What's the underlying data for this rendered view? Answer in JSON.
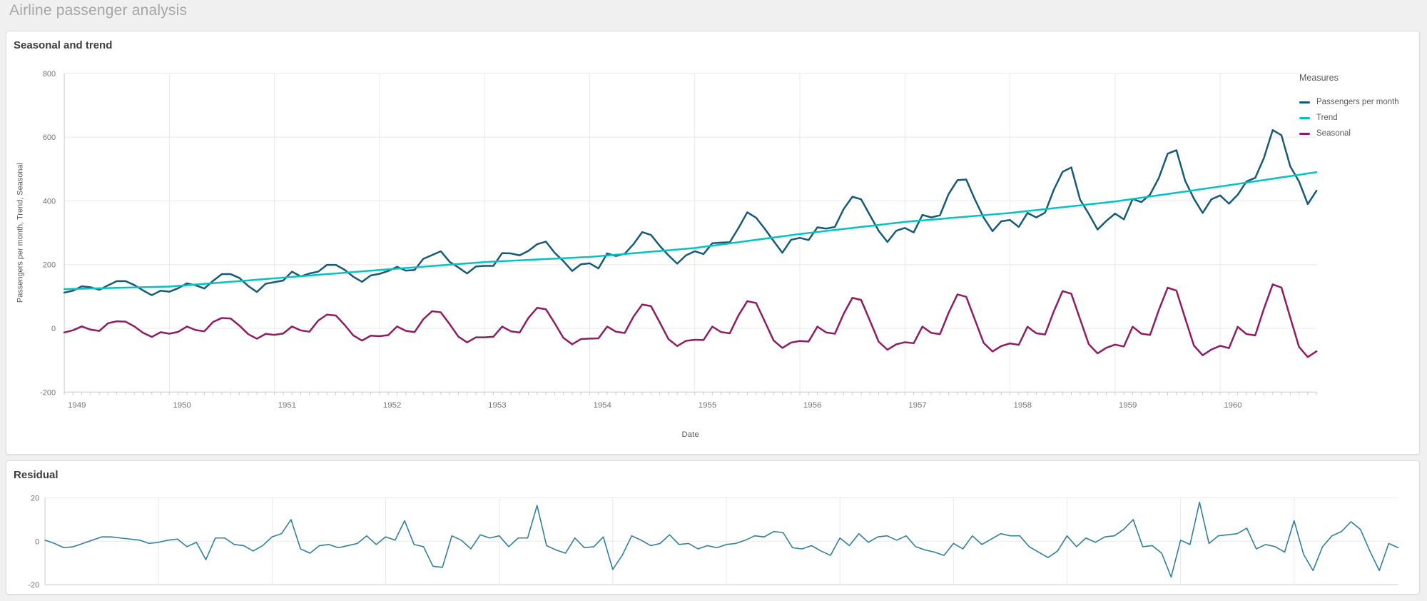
{
  "page": {
    "title": "Airline passenger analysis",
    "background": "#f0f0f0"
  },
  "panels": {
    "seasonal_trend": {
      "title": "Seasonal and trend",
      "legend_title": "Measures"
    },
    "residual": {
      "title": "Residual"
    }
  },
  "colors": {
    "passengers_line": "#175a78",
    "trend_line": "#00c4bf",
    "seasonal_line": "#8e1c62",
    "residual_line": "#2e7f9c",
    "gridline": "#e8e8e8",
    "axis_line": "#c9c9c9",
    "tick_text": "#737373",
    "axis_label_text": "#595959"
  },
  "chart_data": [
    {
      "type": "line",
      "title": "Seasonal and trend",
      "xlabel": "Date",
      "ylabel": "Passengers per month, Trend, Seasonal",
      "legend_title": "Measures",
      "legend_position": "right",
      "grid": true,
      "x_start": "1949-01",
      "x_end": "1960-12",
      "x_frequency": "monthly",
      "x_tick_labels": [
        "1949",
        "1950",
        "1951",
        "1952",
        "1953",
        "1954",
        "1955",
        "1956",
        "1957",
        "1958",
        "1959",
        "1960"
      ],
      "x_minor_ticks": "months",
      "ylim": [
        -200,
        800
      ],
      "y_ticks": [
        -200,
        0,
        200,
        400,
        600,
        800
      ],
      "series": [
        {
          "name": "Passengers per month",
          "color": "#175a78",
          "values": [
            112,
            118,
            132,
            129,
            121,
            135,
            148,
            148,
            136,
            119,
            104,
            118,
            115,
            126,
            141,
            135,
            125,
            149,
            170,
            170,
            158,
            133,
            114,
            140,
            145,
            150,
            178,
            163,
            172,
            178,
            199,
            199,
            184,
            162,
            146,
            166,
            171,
            180,
            193,
            181,
            183,
            218,
            230,
            242,
            209,
            191,
            172,
            194,
            196,
            196,
            236,
            235,
            229,
            243,
            264,
            272,
            237,
            211,
            180,
            201,
            204,
            188,
            235,
            227,
            234,
            264,
            302,
            293,
            259,
            229,
            203,
            229,
            242,
            233,
            267,
            269,
            270,
            315,
            364,
            347,
            312,
            274,
            237,
            278,
            284,
            277,
            317,
            313,
            318,
            374,
            413,
            405,
            355,
            306,
            271,
            306,
            315,
            301,
            356,
            348,
            355,
            422,
            465,
            467,
            404,
            347,
            305,
            336,
            340,
            318,
            362,
            348,
            363,
            435,
            491,
            505,
            404,
            359,
            310,
            337,
            360,
            342,
            406,
            396,
            420,
            472,
            548,
            559,
            463,
            407,
            362,
            405,
            417,
            391,
            419,
            461,
            472,
            535,
            622,
            606,
            508,
            461,
            390,
            432
          ]
        },
        {
          "name": "Trend",
          "color": "#00c4bf",
          "values": [
            123.0,
            123.7,
            124.3,
            125.0,
            125.7,
            126.3,
            127.0,
            127.7,
            128.3,
            129.0,
            129.7,
            130.3,
            131.0,
            133.2,
            135.3,
            137.5,
            139.7,
            141.8,
            144.0,
            146.2,
            148.3,
            150.5,
            152.7,
            154.8,
            157.0,
            159.2,
            161.3,
            163.5,
            165.7,
            167.8,
            170.0,
            172.2,
            174.3,
            176.5,
            178.7,
            180.8,
            183.0,
            185.1,
            187.2,
            189.3,
            191.3,
            193.4,
            195.5,
            197.6,
            199.7,
            201.8,
            203.8,
            205.9,
            208.0,
            209.3,
            210.7,
            212.0,
            213.3,
            214.7,
            216.0,
            217.3,
            218.7,
            220.0,
            221.3,
            222.7,
            224.0,
            226.3,
            228.7,
            231.0,
            233.3,
            235.7,
            238.0,
            240.3,
            242.7,
            245.0,
            247.3,
            249.7,
            252.0,
            255.7,
            259.3,
            263.0,
            266.7,
            270.3,
            274.0,
            277.7,
            281.3,
            285.0,
            288.7,
            292.3,
            296.0,
            299.2,
            302.3,
            305.5,
            308.7,
            311.8,
            315.0,
            318.2,
            321.3,
            324.5,
            327.7,
            330.8,
            334.0,
            336.3,
            338.7,
            341.0,
            343.3,
            345.7,
            348.0,
            350.3,
            352.7,
            355.0,
            357.3,
            359.7,
            362.0,
            365.0,
            368.0,
            371.0,
            374.0,
            377.0,
            380.0,
            383.0,
            386.0,
            389.0,
            392.0,
            395.0,
            398.0,
            401.9,
            405.8,
            409.8,
            413.7,
            417.6,
            421.5,
            425.4,
            429.3,
            433.3,
            437.2,
            441.1,
            445.0,
            449.1,
            453.2,
            457.3,
            461.4,
            465.5,
            469.5,
            473.6,
            477.7,
            481.8,
            485.9,
            490.0
          ]
        },
        {
          "name": "Seasonal",
          "color": "#8e1c62",
          "values": [
            -13.0,
            -6.0,
            6.0,
            -4.0,
            -8.0,
            16.0,
            22.0,
            21.0,
            6.0,
            -14.0,
            -27.0,
            -12.0,
            -16.8,
            -11.1,
            5.9,
            -5.3,
            -9.3,
            20.2,
            32.5,
            30.7,
            8.5,
            -18.0,
            -32.7,
            -17.5,
            -20.6,
            -16.2,
            5.8,
            -6.5,
            -10.5,
            24.4,
            43.1,
            40.5,
            11.1,
            -22.0,
            -38.5,
            -22.9,
            -24.5,
            -21.3,
            5.7,
            -7.8,
            -11.8,
            28.5,
            53.6,
            50.2,
            13.6,
            -26.0,
            -44.2,
            -28.4,
            -28.3,
            -26.4,
            5.6,
            -9.1,
            -13.1,
            32.7,
            64.2,
            59.9,
            16.2,
            -30.0,
            -49.9,
            -33.8,
            -32.1,
            -31.5,
            5.5,
            -10.4,
            -14.4,
            36.9,
            74.7,
            69.6,
            18.7,
            -34.0,
            -55.6,
            -39.3,
            -35.9,
            -36.5,
            5.5,
            -11.6,
            -15.6,
            41.1,
            85.3,
            79.4,
            21.3,
            -38.0,
            -61.4,
            -44.7,
            -39.7,
            -41.6,
            5.4,
            -12.9,
            -16.9,
            45.3,
            95.8,
            89.1,
            23.8,
            -42.0,
            -67.1,
            -50.2,
            -43.5,
            -46.7,
            5.3,
            -14.2,
            -18.2,
            49.5,
            106.4,
            98.8,
            26.4,
            -46.0,
            -72.8,
            -55.6,
            -47.4,
            -51.8,
            5.2,
            -15.5,
            -19.5,
            53.6,
            116.9,
            108.5,
            28.9,
            -50.0,
            -78.5,
            -61.1,
            -51.2,
            -56.9,
            5.1,
            -16.7,
            -20.7,
            57.8,
            127.5,
            118.3,
            31.5,
            -54.0,
            -84.3,
            -66.5,
            -55.0,
            -62.0,
            5.0,
            -18.0,
            -22.0,
            62.0,
            138.0,
            128.0,
            34.0,
            -58.0,
            -90.0,
            -72.0
          ]
        }
      ]
    },
    {
      "type": "line",
      "title": "Residual",
      "xlabel": "",
      "ylabel": "",
      "grid": true,
      "x_start": "1949-01",
      "x_end": "1960-12",
      "x_frequency": "monthly",
      "ylim": [
        -20,
        20
      ],
      "y_ticks": [
        -20,
        0,
        20
      ],
      "series": [
        {
          "name": "Residual",
          "color": "#2e7f9c",
          "values": [
            0.5,
            -1.0,
            -3.0,
            -2.5,
            -1.0,
            0.5,
            2.0,
            2.0,
            1.5,
            1.0,
            0.5,
            -1.0,
            -0.5,
            0.5,
            1.0,
            -2.5,
            -0.5,
            -8.5,
            1.5,
            1.5,
            -1.5,
            -2.0,
            -4.5,
            -2.0,
            2.0,
            3.5,
            10.0,
            -3.5,
            -5.5,
            -2.0,
            -1.5,
            -3.0,
            -2.0,
            -1.0,
            2.5,
            -1.5,
            2.0,
            0.5,
            9.5,
            -1.5,
            -2.5,
            -11.5,
            -12.0,
            2.5,
            0.5,
            -3.5,
            3.0,
            1.5,
            2.5,
            -2.5,
            1.5,
            1.5,
            16.5,
            -2.0,
            -4.0,
            -5.5,
            1.5,
            -3.0,
            -2.5,
            2.0,
            -13.0,
            -6.5,
            2.5,
            0.5,
            -2.0,
            -1.0,
            3.0,
            -1.5,
            -1.0,
            -3.5,
            -2.0,
            -3.0,
            -1.5,
            -1.0,
            0.5,
            2.5,
            2.0,
            4.5,
            4.0,
            -3.0,
            -3.5,
            -2.0,
            -4.5,
            -6.5,
            1.5,
            -2.0,
            3.5,
            -0.5,
            2.0,
            2.5,
            0.5,
            2.5,
            -2.5,
            -4.0,
            -5.0,
            -6.5,
            -1.0,
            -3.5,
            2.5,
            -1.5,
            1.0,
            3.5,
            2.5,
            2.5,
            -2.5,
            -5.0,
            -7.5,
            -4.5,
            2.5,
            -2.5,
            1.5,
            -0.5,
            2.0,
            2.5,
            5.5,
            10.0,
            -2.5,
            -2.0,
            -5.5,
            -16.5,
            0.5,
            -1.5,
            18.0,
            -1.0,
            2.5,
            3.0,
            3.5,
            6.0,
            -3.5,
            -1.5,
            -2.5,
            -5.0,
            9.5,
            -6.0,
            -13.5,
            -2.5,
            2.5,
            4.5,
            9.0,
            5.5,
            -4.5,
            -13.5,
            -1.0,
            -3.0
          ]
        }
      ]
    }
  ]
}
